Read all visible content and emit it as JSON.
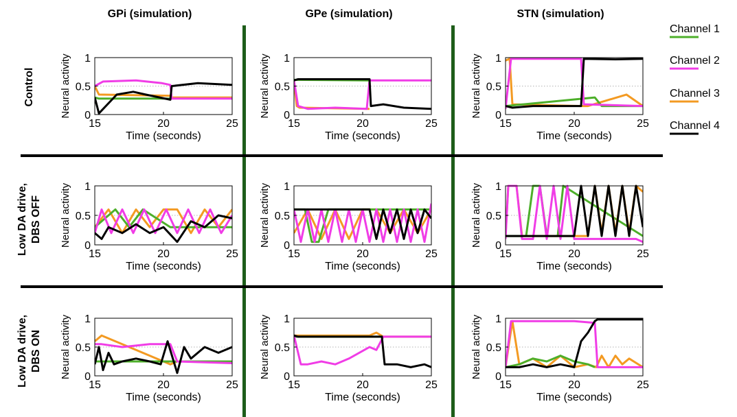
{
  "columns": [
    "GPi (simulation)",
    "GPe (simulation)",
    "STN (simulation)"
  ],
  "rows": [
    [
      "Control"
    ],
    [
      "Low DA drive,",
      "DBS OFF"
    ],
    [
      "Low DA drive,",
      "DBS ON"
    ]
  ],
  "legend": [
    {
      "label": "Channel 1",
      "color": "#4daf2a"
    },
    {
      "label": "Channel 2",
      "color": "#f03ce6"
    },
    {
      "label": "Channel 3",
      "color": "#f39a22"
    },
    {
      "label": "Channel 4",
      "color": "#000000"
    }
  ],
  "chart_data": [
    {
      "panel": "GPi-Control",
      "type": "line",
      "xlabel": "Time (seconds)",
      "ylabel": "Neural activity",
      "xlim": [
        15,
        25
      ],
      "ylim": [
        0,
        1
      ],
      "xticks": [
        15,
        20,
        25
      ],
      "yticks": [
        0,
        0.5,
        1
      ],
      "grid": "horizontal-dotted",
      "series": [
        {
          "color": "#f39a22",
          "x": [
            15,
            15.3,
            20.5,
            20.6,
            25
          ],
          "y": [
            0.5,
            0.35,
            0.33,
            0.3,
            0.3
          ]
        },
        {
          "color": "#f03ce6",
          "x": [
            15,
            15.6,
            18,
            19.9,
            20.5,
            20.6,
            25
          ],
          "y": [
            0.5,
            0.58,
            0.6,
            0.55,
            0.52,
            0.28,
            0.28
          ]
        },
        {
          "color": "#4daf2a",
          "x": [
            15,
            15.3,
            20.5
          ],
          "y": [
            0.3,
            0.28,
            0.28
          ]
        },
        {
          "color": "#000000",
          "x": [
            15,
            15.3,
            16.6,
            17.8,
            18.7,
            20.5,
            20.6,
            22.5,
            25
          ],
          "y": [
            0.3,
            0.02,
            0.35,
            0.4,
            0.35,
            0.26,
            0.5,
            0.55,
            0.52
          ]
        }
      ]
    },
    {
      "panel": "GPe-Control",
      "type": "line",
      "xlabel": "Time (seconds)",
      "ylabel": "Neural activity",
      "xlim": [
        15,
        25
      ],
      "ylim": [
        0,
        1
      ],
      "xticks": [
        15,
        20,
        25
      ],
      "yticks": [
        0,
        0.5,
        1
      ],
      "grid": "horizontal-dotted",
      "series": [
        {
          "color": "#f39a22",
          "x": [
            15,
            15.2,
            15.4,
            20.5
          ],
          "y": [
            0.6,
            0.15,
            0.12,
            0.1
          ]
        },
        {
          "color": "#f03ce6",
          "x": [
            15,
            15.3,
            16,
            18,
            20.3,
            20.5,
            25
          ],
          "y": [
            0.6,
            0.15,
            0.1,
            0.12,
            0.1,
            0.6,
            0.6
          ]
        },
        {
          "color": "#4daf2a",
          "x": [
            15,
            20.5
          ],
          "y": [
            0.61,
            0.6
          ]
        },
        {
          "color": "#000000",
          "x": [
            15,
            15.3,
            20.5,
            20.6,
            21.5,
            23,
            25
          ],
          "y": [
            0.6,
            0.62,
            0.62,
            0.15,
            0.18,
            0.12,
            0.1
          ]
        }
      ]
    },
    {
      "panel": "STN-Control",
      "type": "line",
      "xlabel": "Time (seconds)",
      "ylabel": "Neural activity",
      "xlim": [
        15,
        25
      ],
      "ylim": [
        0,
        1
      ],
      "xticks": [
        15,
        20,
        25
      ],
      "yticks": [
        0,
        0.5,
        1
      ],
      "grid": "horizontal-dotted",
      "series": [
        {
          "color": "#f39a22",
          "x": [
            15,
            15.3,
            15.5,
            20.5,
            21,
            23.8,
            25
          ],
          "y": [
            0.95,
            0.98,
            0.18,
            0.15,
            0.15,
            0.35,
            0.15
          ]
        },
        {
          "color": "#4daf2a",
          "x": [
            15,
            21.5,
            22,
            25
          ],
          "y": [
            0.15,
            0.3,
            0.15,
            0.15
          ]
        },
        {
          "color": "#f03ce6",
          "x": [
            15,
            15.4,
            15.6,
            20.3,
            20.5,
            20.7,
            25
          ],
          "y": [
            0.1,
            0.98,
            0.98,
            0.98,
            0.98,
            0.18,
            0.15
          ]
        },
        {
          "color": "#000000",
          "x": [
            15,
            15.5,
            17,
            20.3,
            20.5,
            20.7,
            23,
            25
          ],
          "y": [
            0.15,
            0.12,
            0.15,
            0.15,
            0.15,
            0.98,
            0.97,
            0.98
          ]
        }
      ]
    },
    {
      "panel": "GPi-DBSOFF",
      "type": "line",
      "xlabel": "Time (seconds)",
      "ylabel": "Neural activity",
      "xlim": [
        15,
        25
      ],
      "ylim": [
        0,
        1
      ],
      "xticks": [
        15,
        20,
        25
      ],
      "yticks": [
        0,
        0.5,
        1
      ],
      "grid": "horizontal-dotted",
      "series": [
        {
          "color": "#f39a22",
          "x": [
            15,
            16,
            17,
            18,
            19,
            20,
            21,
            22,
            23,
            24,
            25
          ],
          "y": [
            0.3,
            0.6,
            0.2,
            0.6,
            0.3,
            0.6,
            0.6,
            0.2,
            0.6,
            0.3,
            0.6
          ]
        },
        {
          "color": "#4daf2a",
          "x": [
            15,
            16.5,
            17.5,
            18.5,
            20.5,
            25
          ],
          "y": [
            0.3,
            0.6,
            0.3,
            0.6,
            0.3,
            0.3
          ]
        },
        {
          "color": "#f03ce6",
          "x": [
            15,
            15.5,
            16.2,
            17,
            17.8,
            18.6,
            19.4,
            20.2,
            21,
            21.8,
            22.6,
            23.4,
            24.2,
            25
          ],
          "y": [
            0.2,
            0.6,
            0.2,
            0.6,
            0.2,
            0.6,
            0.2,
            0.6,
            0.2,
            0.6,
            0.2,
            0.6,
            0.2,
            0.5
          ]
        },
        {
          "color": "#000000",
          "x": [
            15,
            15.5,
            16,
            17,
            18,
            19,
            20,
            21,
            22,
            23,
            24,
            25
          ],
          "y": [
            0.2,
            0.1,
            0.3,
            0.2,
            0.35,
            0.2,
            0.3,
            0.05,
            0.4,
            0.3,
            0.5,
            0.45
          ]
        }
      ]
    },
    {
      "panel": "GPe-DBSOFF",
      "type": "line",
      "xlabel": "Time (seconds)",
      "ylabel": "Neural activity",
      "xlim": [
        15,
        25
      ],
      "ylim": [
        0,
        1
      ],
      "xticks": [
        15,
        20,
        25
      ],
      "yticks": [
        0,
        0.5,
        1
      ],
      "grid": "horizontal-dotted",
      "series": [
        {
          "color": "#f39a22",
          "x": [
            15,
            16,
            17,
            18,
            19,
            20,
            21,
            22,
            23,
            24,
            25
          ],
          "y": [
            0.2,
            0.6,
            0.1,
            0.6,
            0.1,
            0.6,
            0.6,
            0.2,
            0.6,
            0.2,
            0.6
          ]
        },
        {
          "color": "#4daf2a",
          "x": [
            15,
            15.8,
            16.3,
            16.8,
            17.5,
            25
          ],
          "y": [
            0.6,
            0.6,
            0.05,
            0.05,
            0.6,
            0.6
          ]
        },
        {
          "color": "#f03ce6",
          "x": [
            15,
            15.5,
            16,
            16.5,
            17,
            17.5,
            18,
            18.5,
            19,
            19.5,
            20,
            20.5,
            21,
            21.5,
            22,
            22.5,
            23,
            23.5,
            24,
            24.5,
            25
          ],
          "y": [
            0.6,
            0.05,
            0.6,
            0.05,
            0.6,
            0.05,
            0.6,
            0.05,
            0.6,
            0.05,
            0.6,
            0.05,
            0.6,
            0.05,
            0.6,
            0.05,
            0.6,
            0.05,
            0.6,
            0.05,
            0.7
          ]
        },
        {
          "color": "#000000",
          "x": [
            15,
            20.5,
            21,
            21.5,
            22,
            22.5,
            23,
            23.5,
            24,
            24.5,
            25
          ],
          "y": [
            0.6,
            0.6,
            0.1,
            0.6,
            0.2,
            0.6,
            0.1,
            0.6,
            0.2,
            0.6,
            0.45
          ]
        }
      ]
    },
    {
      "panel": "STN-DBSOFF",
      "type": "line",
      "xlabel": "Time (seconds)",
      "ylabel": "Neural activity",
      "xlim": [
        15,
        25
      ],
      "ylim": [
        0,
        1
      ],
      "xticks": [
        15,
        20,
        25
      ],
      "yticks": [
        0,
        0.5,
        1
      ],
      "grid": "horizontal-dotted",
      "series": [
        {
          "color": "#4daf2a",
          "x": [
            15,
            16.5,
            17,
            17.5,
            18,
            18.8,
            19.2,
            25
          ],
          "y": [
            0.15,
            0.15,
            1,
            1,
            0.15,
            0.15,
            1,
            0.15
          ]
        },
        {
          "color": "#f39a22",
          "x": [
            15,
            15.2,
            15.8,
            16.2,
            21,
            21.5,
            22,
            22.5,
            23,
            23.5,
            24,
            24.5,
            25
          ],
          "y": [
            0.15,
            1,
            1,
            0.15,
            0.15,
            1,
            0.2,
            1,
            0.2,
            1,
            0.2,
            1,
            0.9
          ]
        },
        {
          "color": "#f03ce6",
          "x": [
            15,
            15.2,
            15.8,
            16.2,
            17,
            17.5,
            18,
            18.5,
            19,
            19.5,
            20,
            21,
            22,
            23,
            24,
            24.5,
            25
          ],
          "y": [
            0.1,
            1,
            1,
            0.1,
            0.1,
            1,
            0.1,
            1,
            0.1,
            1,
            0.1,
            0.1,
            0.1,
            0.1,
            0.1,
            0.1,
            0.05
          ]
        },
        {
          "color": "#000000",
          "x": [
            15,
            20,
            20.5,
            21,
            21.5,
            22,
            22.5,
            23,
            23.5,
            24,
            24.5,
            25
          ],
          "y": [
            0.15,
            0.15,
            1,
            0.15,
            1,
            0.15,
            1,
            0.15,
            1,
            0.15,
            1,
            0.3
          ]
        }
      ]
    },
    {
      "panel": "GPi-DBSON",
      "type": "line",
      "xlabel": "Time (seconds)",
      "ylabel": "Neural activity",
      "xlim": [
        15,
        25
      ],
      "ylim": [
        0,
        1
      ],
      "xticks": [
        15,
        20,
        25
      ],
      "yticks": [
        0,
        0.5,
        1
      ],
      "grid": "horizontal-dotted",
      "series": [
        {
          "color": "#f39a22",
          "x": [
            15,
            15.5,
            20.5,
            21,
            25
          ],
          "y": [
            0.6,
            0.7,
            0.2,
            0.25,
            0.25
          ]
        },
        {
          "color": "#4daf2a",
          "x": [
            15,
            20,
            25
          ],
          "y": [
            0.25,
            0.25,
            0.25
          ]
        },
        {
          "color": "#f03ce6",
          "x": [
            15,
            15.5,
            17,
            19,
            20.5,
            21,
            25
          ],
          "y": [
            0.55,
            0.55,
            0.5,
            0.55,
            0.55,
            0.25,
            0.22
          ]
        },
        {
          "color": "#000000",
          "x": [
            15,
            15.3,
            15.6,
            16,
            16.4,
            17,
            18,
            19,
            19.8,
            20.3,
            21,
            21.5,
            22,
            23,
            24,
            25
          ],
          "y": [
            0.2,
            0.5,
            0.1,
            0.4,
            0.2,
            0.25,
            0.3,
            0.25,
            0.2,
            0.6,
            0.05,
            0.5,
            0.3,
            0.5,
            0.4,
            0.5
          ]
        }
      ]
    },
    {
      "panel": "GPe-DBSON",
      "type": "line",
      "xlabel": "Time (seconds)",
      "ylabel": "Neural activity",
      "xlim": [
        15,
        25
      ],
      "ylim": [
        0,
        1
      ],
      "xticks": [
        15,
        20,
        25
      ],
      "yticks": [
        0,
        0.5,
        1
      ],
      "grid": "horizontal-dotted",
      "series": [
        {
          "color": "#f39a22",
          "x": [
            15,
            15.3,
            20.5,
            21,
            21.5,
            25
          ],
          "y": [
            0.7,
            0.7,
            0.7,
            0.75,
            0.68,
            0.68
          ]
        },
        {
          "color": "#4daf2a",
          "x": [
            15,
            21.5
          ],
          "y": [
            0.68,
            0.68
          ]
        },
        {
          "color": "#f03ce6",
          "x": [
            15,
            15.5,
            16,
            17,
            18,
            19,
            20.5,
            21,
            21.5,
            25
          ],
          "y": [
            0.7,
            0.2,
            0.2,
            0.25,
            0.2,
            0.3,
            0.5,
            0.45,
            0.68,
            0.68
          ]
        },
        {
          "color": "#000000",
          "x": [
            15,
            15.3,
            21.4,
            21.6,
            22.5,
            23.5,
            24.5,
            25
          ],
          "y": [
            0.7,
            0.68,
            0.68,
            0.2,
            0.2,
            0.15,
            0.2,
            0.15
          ]
        }
      ]
    },
    {
      "panel": "STN-DBSON",
      "type": "line",
      "xlabel": "Time (seconds)",
      "ylabel": "Neural activity",
      "xlim": [
        15,
        25
      ],
      "ylim": [
        0,
        1
      ],
      "xticks": [
        15,
        20,
        25
      ],
      "yticks": [
        0,
        0.5,
        1
      ],
      "grid": "horizontal-dotted",
      "series": [
        {
          "color": "#f39a22",
          "x": [
            15,
            15.5,
            16,
            17,
            18,
            19,
            20,
            21,
            21.6,
            22,
            22.5,
            23,
            23.5,
            24,
            25
          ],
          "y": [
            0.15,
            0.95,
            0.2,
            0.3,
            0.15,
            0.35,
            0.15,
            0.2,
            0.15,
            0.35,
            0.15,
            0.35,
            0.2,
            0.3,
            0.15
          ]
        },
        {
          "color": "#4daf2a",
          "x": [
            15,
            16,
            17,
            18,
            19,
            20,
            21,
            21.5
          ],
          "y": [
            0.15,
            0.2,
            0.3,
            0.25,
            0.35,
            0.25,
            0.2,
            0.15
          ]
        },
        {
          "color": "#f03ce6",
          "x": [
            15,
            15.4,
            15.6,
            20,
            21.5,
            21.7,
            25
          ],
          "y": [
            0.15,
            0.95,
            0.95,
            0.95,
            0.92,
            0.15,
            0.15
          ]
        },
        {
          "color": "#000000",
          "x": [
            15,
            16,
            17,
            18,
            19,
            20,
            20.5,
            21,
            21.5,
            21.7,
            25
          ],
          "y": [
            0.15,
            0.15,
            0.2,
            0.15,
            0.2,
            0.15,
            0.6,
            0.75,
            0.95,
            0.98,
            0.98
          ]
        }
      ]
    }
  ]
}
